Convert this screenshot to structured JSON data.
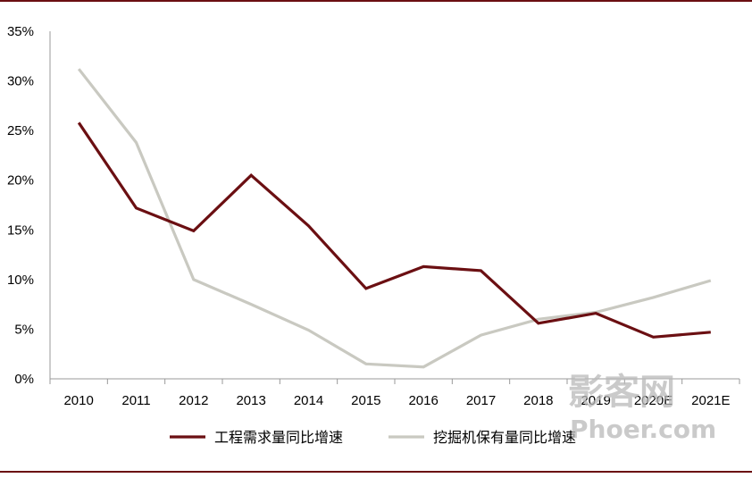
{
  "chart_data": {
    "type": "line",
    "categories": [
      "2010",
      "2011",
      "2012",
      "2013",
      "2014",
      "2015",
      "2016",
      "2017",
      "2018",
      "2019",
      "2020E",
      "2021E"
    ],
    "series": [
      {
        "name": "工程需求量同比增速",
        "color": "#6b0f12",
        "values": [
          25.8,
          17.2,
          14.9,
          20.5,
          15.4,
          9.1,
          11.3,
          10.9,
          5.6,
          6.6,
          4.2,
          4.7
        ]
      },
      {
        "name": "挖掘机保有量同比增速",
        "color": "#c9c9c1",
        "values": [
          31.2,
          23.8,
          10.0,
          7.5,
          4.9,
          1.5,
          1.2,
          4.4,
          6.0,
          6.7,
          8.2,
          9.9
        ]
      }
    ],
    "ylim": [
      0,
      35
    ],
    "yticks": [
      "0%",
      "5%",
      "10%",
      "15%",
      "20%",
      "25%",
      "30%",
      "35%"
    ],
    "ytick_values": [
      0,
      5,
      10,
      15,
      20,
      25,
      30,
      35
    ],
    "legend": "bottom",
    "grid": false
  },
  "watermark": {
    "line1": "影客网",
    "line2": "Phoer.com"
  }
}
